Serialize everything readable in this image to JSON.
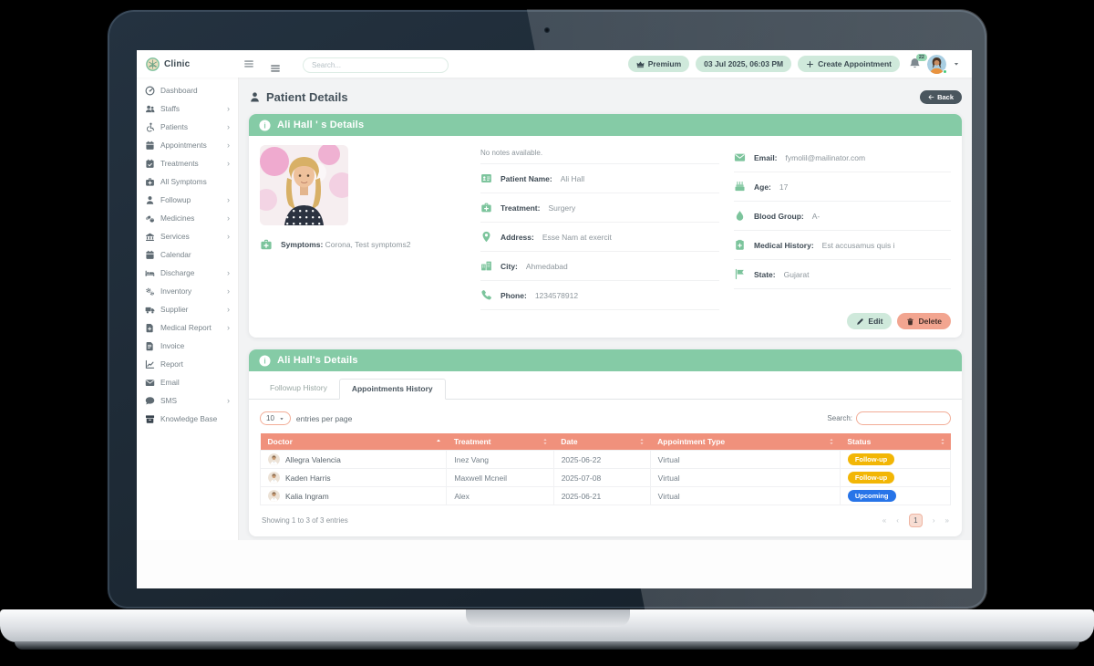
{
  "topbar": {
    "brand": "Clinic",
    "logo_icon": "clinic-logo-icon",
    "menu_icon": "menu-icon",
    "search_placeholder": "Search...",
    "premium": {
      "icon": "crown-icon",
      "label": "Premium"
    },
    "datetime": "03 Jul 2025, 06:03 PM",
    "create": {
      "icon": "plus-icon",
      "label": "Create Appointment"
    },
    "bell_icon": "bell-icon",
    "notification_count": "22",
    "avatar_icon": "avatar-woman-icon",
    "caret_icon": "caret-down-icon"
  },
  "sidebar": {
    "items": [
      {
        "label": "Dashboard",
        "icon": "gauge-icon",
        "arrow": false
      },
      {
        "label": "Staffs",
        "icon": "users-icon",
        "arrow": true
      },
      {
        "label": "Patients",
        "icon": "wheelchair-icon",
        "arrow": true
      },
      {
        "label": "Appointments",
        "icon": "calendar-icon",
        "arrow": true
      },
      {
        "label": "Treatments",
        "icon": "calendar-check-icon",
        "arrow": true
      },
      {
        "label": "All Symptoms",
        "icon": "kit-icon",
        "arrow": false
      },
      {
        "label": "Followup",
        "icon": "person-icon",
        "arrow": true
      },
      {
        "label": "Medicines",
        "icon": "pills-icon",
        "arrow": true
      },
      {
        "label": "Services",
        "icon": "hospital-icon",
        "arrow": true
      },
      {
        "label": "Calendar",
        "icon": "calendar-icon",
        "arrow": false
      },
      {
        "label": "Discharge",
        "icon": "bed-icon",
        "arrow": true
      },
      {
        "label": "Inventory",
        "icon": "gears-icon",
        "arrow": true
      },
      {
        "label": "Supplier",
        "icon": "truck-icon",
        "arrow": true
      },
      {
        "label": "Medical Report",
        "icon": "file-plus-icon",
        "arrow": true
      },
      {
        "label": "Invoice",
        "icon": "file-invoice-icon",
        "arrow": false
      },
      {
        "label": "Report",
        "icon": "chart-line-icon",
        "arrow": false
      },
      {
        "label": "Email",
        "icon": "envelope-icon",
        "arrow": false
      },
      {
        "label": "SMS",
        "icon": "comment-icon",
        "arrow": true
      },
      {
        "label": "Knowledge Base",
        "icon": "archive-icon",
        "arrow": false
      }
    ]
  },
  "page": {
    "title_icon": "person-icon",
    "title": "Patient Details",
    "back": {
      "icon": "back-arrow-icon",
      "label": "Back"
    }
  },
  "details_card": {
    "info_icon": "info-icon",
    "header": "Ali Hall ' s Details",
    "notes": "No notes available.",
    "symptoms": {
      "icon": "kit-icon",
      "label": "Symptoms:",
      "value": "Corona, Test symptoms2"
    },
    "fields_middle": [
      {
        "icon": "id-card-icon",
        "label": "Patient Name:",
        "value": "Ali Hall"
      },
      {
        "icon": "kit-icon",
        "label": "Treatment:",
        "value": "Surgery"
      },
      {
        "icon": "map-pin-icon",
        "label": "Address:",
        "value": "Esse Nam at exercit"
      },
      {
        "icon": "building-icon",
        "label": "City:",
        "value": "Ahmedabad"
      },
      {
        "icon": "phone-icon",
        "label": "Phone:",
        "value": "1234578912"
      }
    ],
    "fields_right": [
      {
        "icon": "envelope-icon",
        "label": "Email:",
        "value": "fymolil@mailinator.com"
      },
      {
        "icon": "cake-icon",
        "label": "Age:",
        "value": "17"
      },
      {
        "icon": "droplet-icon",
        "label": "Blood Group:",
        "value": "A-"
      },
      {
        "icon": "notes-medical-icon",
        "label": "Medical History:",
        "value": "Est accusamus quis i"
      },
      {
        "icon": "flag-icon",
        "label": "State:",
        "value": "Gujarat"
      }
    ],
    "actions": {
      "edit": {
        "icon": "pencil-icon",
        "label": "Edit"
      },
      "delete": {
        "icon": "trash-icon",
        "label": "Delete"
      }
    }
  },
  "history_card": {
    "info_icon": "info-icon",
    "header": "Ali Hall's Details",
    "tabs": [
      {
        "label": "Followup History",
        "active": false
      },
      {
        "label": "Appointments History",
        "active": true
      }
    ],
    "entries": {
      "value": "10",
      "caret_icon": "caret-down-icon",
      "label": "entries per page"
    },
    "search_label": "Search:",
    "table": {
      "headers": [
        {
          "label": "Doctor",
          "sort_icon": "sort-asc-icon"
        },
        {
          "label": "Treatment",
          "sort_icon": "sort-both-icon"
        },
        {
          "label": "Date",
          "sort_icon": "sort-both-icon"
        },
        {
          "label": "Appointment Type",
          "sort_icon": "sort-both-icon"
        },
        {
          "label": "Status",
          "sort_icon": "sort-both-icon"
        }
      ],
      "rows": [
        {
          "avatar_icon": "doctor-avatar-icon",
          "doctor": "Allegra Valencia",
          "treatment": "Inez Vang",
          "date": "2025-06-22",
          "type": "Virtual",
          "status": "Follow-up",
          "status_color": "#f2b605"
        },
        {
          "avatar_icon": "doctor-avatar-icon",
          "doctor": "Kaden Harris",
          "treatment": "Maxwell Mcneil",
          "date": "2025-07-08",
          "type": "Virtual",
          "status": "Follow-up",
          "status_color": "#f2b605"
        },
        {
          "avatar_icon": "doctor-avatar-icon",
          "doctor": "Kalia Ingram",
          "treatment": "Alex",
          "date": "2025-06-21",
          "type": "Virtual",
          "status": "Upcoming",
          "status_color": "#2774e8"
        }
      ]
    },
    "footer": "Showing 1 to 3 of 3 entries",
    "pagination": {
      "first": "«",
      "prev": "‹",
      "current": "1",
      "next": "›",
      "last": "»"
    }
  },
  "colors": {
    "accent_green": "#85cba6",
    "table_header": "#f0917c",
    "badge_followup": "#f2b605",
    "badge_upcoming": "#2774e8",
    "pill_bg": "#cfe9db",
    "delete_bg": "#f2a590",
    "back_bg": "#4a565e"
  }
}
